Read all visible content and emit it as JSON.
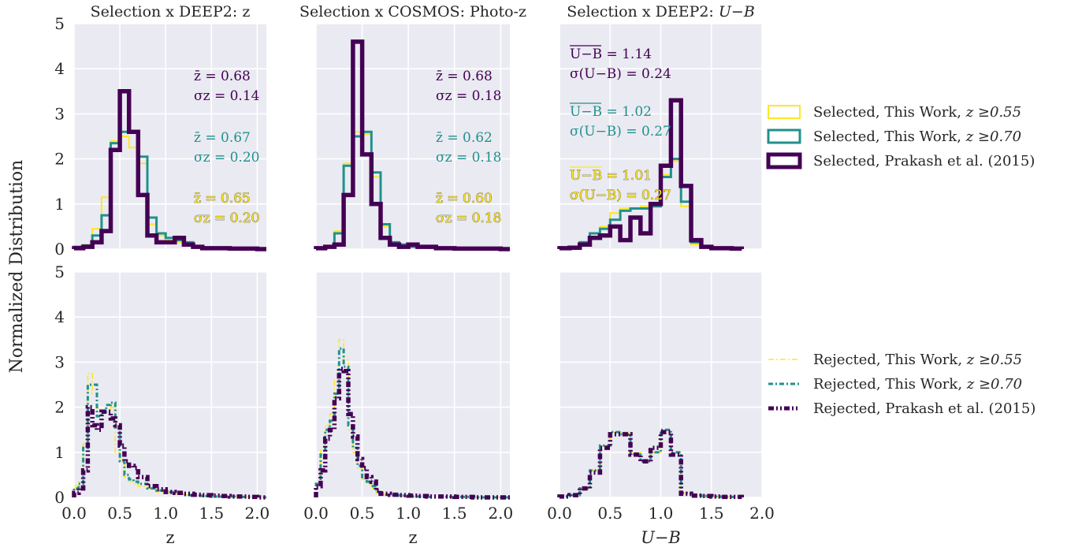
{
  "figure": {
    "ylabel": "Normalized Distribution"
  },
  "colors": {
    "background": "#eaeaf2",
    "grid": "#ffffff",
    "series_055": "#fde725",
    "series_070": "#21918c",
    "series_prakash": "#440154"
  },
  "legend_selected": [
    {
      "label": "Selected, This Work, ",
      "math": "z ≥0.55",
      "color": "#fde725",
      "width": 2
    },
    {
      "label": "Selected, This Work, ",
      "math": "z ≥0.70",
      "color": "#21918c",
      "width": 3
    },
    {
      "label": "Selected, Prakash et al. (2015)",
      "math": "",
      "color": "#440154",
      "width": 5
    }
  ],
  "legend_rejected": [
    {
      "label": "Rejected, This Work, ",
      "math": "z ≥0.55",
      "color": "#fde725",
      "width": 1.5
    },
    {
      "label": "Rejected, This Work, ",
      "math": "z ≥0.70",
      "color": "#21918c",
      "width": 3
    },
    {
      "label": "Rejected, Prakash et al. (2015)",
      "math": "",
      "color": "#440154",
      "width": 5
    }
  ],
  "chart_data": [
    {
      "type": "histogram",
      "title": "Selection x DEEP2: z",
      "xlabel": "",
      "ylabel": "",
      "xlim": [
        0.0,
        2.1
      ],
      "ylim": [
        0,
        5
      ],
      "xticks": [
        0.0,
        0.5,
        1.0,
        1.5,
        2.0
      ],
      "yticks": [
        0,
        1,
        2,
        3,
        4,
        5
      ],
      "grid": true,
      "bin_edges": [
        0.0,
        0.1,
        0.2,
        0.3,
        0.4,
        0.5,
        0.6,
        0.7,
        0.8,
        0.9,
        1.0,
        1.1,
        1.2,
        1.3,
        1.4,
        1.5,
        1.6,
        1.7,
        1.8,
        1.9,
        2.0,
        2.1
      ],
      "series": [
        {
          "values": [
            0.05,
            0.1,
            0.45,
            1.15,
            2.4,
            2.5,
            2.25,
            1.9,
            0.55,
            0.3,
            0.2,
            0.15,
            0.1,
            0.05,
            0.03,
            0.02,
            0.02,
            0.01,
            0.01,
            0.01,
            0.0
          ]
        },
        {
          "values": [
            0.05,
            0.08,
            0.3,
            0.75,
            2.35,
            2.6,
            2.6,
            2.05,
            0.7,
            0.35,
            0.25,
            0.2,
            0.15,
            0.05,
            0.03,
            0.02,
            0.02,
            0.01,
            0.01,
            0.01,
            0.0
          ]
        },
        {
          "values": [
            0.02,
            0.05,
            0.15,
            0.4,
            2.2,
            3.5,
            2.6,
            1.2,
            0.3,
            0.15,
            0.15,
            0.25,
            0.1,
            0.05,
            0.02,
            0.02,
            0.02,
            0.01,
            0.01,
            0.01,
            0.0
          ]
        }
      ],
      "annotations": [
        {
          "line1": "z̄ = 0.68",
          "line2": "σz = 0.14",
          "color": "#440154"
        },
        {
          "line1": "z̄ = 0.67",
          "line2": "σz = 0.20",
          "color": "#21918c"
        },
        {
          "line1": "z̄ = 0.65",
          "line2": "σz = 0.20",
          "color": "#fde725"
        }
      ]
    },
    {
      "type": "histogram",
      "title": "Selection x COSMOS: Photo-z",
      "xlabel": "",
      "ylabel": "",
      "xlim": [
        0.0,
        2.1
      ],
      "ylim": [
        0,
        5
      ],
      "xticks": [
        0.0,
        0.5,
        1.0,
        1.5,
        2.0
      ],
      "yticks": [
        0,
        1,
        2,
        3,
        4,
        5
      ],
      "grid": true,
      "bin_edges": [
        0.0,
        0.1,
        0.2,
        0.3,
        0.4,
        0.5,
        0.6,
        0.7,
        0.8,
        0.9,
        1.0,
        1.1,
        1.2,
        1.3,
        1.4,
        1.5,
        1.6,
        1.7,
        1.8,
        1.9,
        2.0,
        2.1
      ],
      "series": [
        {
          "values": [
            0.03,
            0.05,
            0.4,
            1.9,
            2.6,
            2.55,
            1.6,
            0.5,
            0.15,
            0.1,
            0.05,
            0.05,
            0.03,
            0.02,
            0.02,
            0.01,
            0.01,
            0.01,
            0.01,
            0.01,
            0.0
          ]
        },
        {
          "values": [
            0.03,
            0.05,
            0.35,
            1.85,
            2.5,
            2.6,
            1.7,
            0.55,
            0.15,
            0.1,
            0.05,
            0.05,
            0.03,
            0.02,
            0.02,
            0.01,
            0.01,
            0.01,
            0.01,
            0.01,
            0.0
          ]
        },
        {
          "values": [
            0.02,
            0.05,
            0.1,
            1.2,
            4.6,
            2.1,
            1.0,
            0.25,
            0.1,
            0.05,
            0.1,
            0.05,
            0.05,
            0.02,
            0.02,
            0.01,
            0.01,
            0.01,
            0.01,
            0.01,
            0.0
          ]
        }
      ],
      "annotations": [
        {
          "line1": "z̄ = 0.68",
          "line2": "σz = 0.18",
          "color": "#440154"
        },
        {
          "line1": "z̄ = 0.62",
          "line2": "σz = 0.18",
          "color": "#21918c"
        },
        {
          "line1": "z̄ = 0.60",
          "line2": "σz = 0.18",
          "color": "#fde725"
        }
      ]
    },
    {
      "type": "histogram",
      "title": "Selection x DEEP2: ",
      "title_math": "U−B",
      "xlabel": "",
      "ylabel": "",
      "xlim": [
        0.0,
        2.0
      ],
      "ylim": [
        0,
        5
      ],
      "xticks": [
        0.0,
        0.5,
        1.0,
        1.5,
        2.0
      ],
      "yticks": [
        0,
        1,
        2,
        3,
        4,
        5
      ],
      "grid": true,
      "bin_edges": [
        0.0,
        0.1,
        0.2,
        0.3,
        0.4,
        0.5,
        0.6,
        0.7,
        0.8,
        0.9,
        1.0,
        1.1,
        1.2,
        1.3,
        1.4,
        1.5,
        1.6,
        1.7,
        1.8
      ],
      "series": [
        {
          "values": [
            0.02,
            0.05,
            0.15,
            0.35,
            0.5,
            0.8,
            0.9,
            0.9,
            0.95,
            1.0,
            1.65,
            1.95,
            0.95,
            0.1,
            0.05,
            0.02,
            0.02,
            0.01
          ]
        },
        {
          "values": [
            0.02,
            0.05,
            0.15,
            0.35,
            0.45,
            0.65,
            0.85,
            0.9,
            0.9,
            0.95,
            1.6,
            2.0,
            1.05,
            0.15,
            0.05,
            0.02,
            0.02,
            0.01
          ]
        },
        {
          "values": [
            0.02,
            0.03,
            0.1,
            0.25,
            0.3,
            0.5,
            0.2,
            0.7,
            0.35,
            1.0,
            1.85,
            3.3,
            1.4,
            0.2,
            0.05,
            0.02,
            0.02,
            0.01
          ]
        }
      ],
      "annotations": [
        {
          "line1": "U−B = 1.14",
          "line2": "σ(U−B) = 0.24",
          "color": "#440154"
        },
        {
          "line1": "U−B = 1.02",
          "line2": "σ(U−B) = 0.27",
          "color": "#21918c"
        },
        {
          "line1": "U−B = 1.01",
          "line2": "σ(U−B) = 0.27",
          "color": "#fde725"
        }
      ]
    },
    {
      "type": "histogram",
      "title": "",
      "xlabel": "z",
      "ylabel": "",
      "xlim": [
        0.0,
        2.1
      ],
      "ylim": [
        0,
        5
      ],
      "xticks": [
        0.0,
        0.5,
        1.0,
        1.5,
        2.0
      ],
      "yticks": [
        0,
        1,
        2,
        3,
        4,
        5
      ],
      "grid": true,
      "bin_edges": [
        0.0,
        0.05,
        0.1,
        0.15,
        0.2,
        0.25,
        0.3,
        0.35,
        0.4,
        0.45,
        0.5,
        0.55,
        0.6,
        0.65,
        0.7,
        0.8,
        0.9,
        1.0,
        1.1,
        1.2,
        1.3,
        1.4,
        1.5,
        1.6,
        1.7,
        1.8,
        1.9,
        2.0,
        2.1
      ],
      "series": [
        {
          "values": [
            0.25,
            0.35,
            1.2,
            2.75,
            2.3,
            1.95,
            1.9,
            1.95,
            2.0,
            1.0,
            0.8,
            0.45,
            0.35,
            0.3,
            0.25,
            0.2,
            0.12,
            0.1,
            0.08,
            0.05,
            0.04,
            0.03,
            0.02,
            0.02,
            0.02,
            0.01,
            0.01,
            0.0
          ]
        },
        {
          "values": [
            0.2,
            0.3,
            1.1,
            2.5,
            2.5,
            1.8,
            1.9,
            2.05,
            2.1,
            1.55,
            0.8,
            0.5,
            0.4,
            0.35,
            0.3,
            0.2,
            0.15,
            0.12,
            0.08,
            0.05,
            0.04,
            0.03,
            0.02,
            0.02,
            0.02,
            0.01,
            0.01,
            0.0
          ]
        },
        {
          "values": [
            0.1,
            0.2,
            0.6,
            2.0,
            1.6,
            1.5,
            1.9,
            1.9,
            1.75,
            1.6,
            1.15,
            0.8,
            0.7,
            0.65,
            0.45,
            0.25,
            0.18,
            0.12,
            0.1,
            0.08,
            0.06,
            0.05,
            0.04,
            0.03,
            0.02,
            0.02,
            0.01,
            0.0
          ]
        }
      ],
      "annotations": []
    },
    {
      "type": "histogram",
      "title": "",
      "xlabel": "z",
      "ylabel": "",
      "xlim": [
        0.0,
        2.1
      ],
      "ylim": [
        0,
        5
      ],
      "xticks": [
        0.0,
        0.5,
        1.0,
        1.5,
        2.0
      ],
      "yticks": [
        0,
        1,
        2,
        3,
        4,
        5
      ],
      "grid": true,
      "bin_edges": [
        0.0,
        0.05,
        0.1,
        0.15,
        0.2,
        0.25,
        0.3,
        0.35,
        0.4,
        0.45,
        0.5,
        0.55,
        0.6,
        0.65,
        0.7,
        0.8,
        0.9,
        1.0,
        1.1,
        1.2,
        1.3,
        1.4,
        1.5,
        1.6,
        1.7,
        1.8,
        1.9,
        2.0,
        2.1
      ],
      "series": [
        {
          "values": [
            0.3,
            1.05,
            1.6,
            1.85,
            2.6,
            3.5,
            3.05,
            1.5,
            1.0,
            0.65,
            0.4,
            0.3,
            0.2,
            0.1,
            0.05,
            0.04,
            0.03,
            0.02,
            0.02,
            0.01,
            0.01,
            0.01,
            0.01,
            0.01,
            0.0,
            0.0,
            0.0,
            0.0
          ]
        },
        {
          "values": [
            0.3,
            0.95,
            1.5,
            1.7,
            2.3,
            3.3,
            2.9,
            1.6,
            1.1,
            0.7,
            0.45,
            0.35,
            0.25,
            0.12,
            0.06,
            0.05,
            0.04,
            0.02,
            0.02,
            0.01,
            0.01,
            0.01,
            0.01,
            0.01,
            0.0,
            0.0,
            0.0,
            0.0
          ]
        },
        {
          "values": [
            0.25,
            0.6,
            1.3,
            1.5,
            2.2,
            2.85,
            2.8,
            1.85,
            1.35,
            0.85,
            0.65,
            0.45,
            0.35,
            0.15,
            0.08,
            0.06,
            0.05,
            0.04,
            0.03,
            0.02,
            0.02,
            0.02,
            0.01,
            0.01,
            0.0,
            0.0,
            0.0,
            0.0
          ]
        }
      ],
      "annotations": []
    },
    {
      "type": "histogram",
      "title": "",
      "xlabel": "U−B",
      "ylabel": "",
      "xlim": [
        0.0,
        2.0
      ],
      "ylim": [
        0,
        5
      ],
      "xticks": [
        0.0,
        0.5,
        1.0,
        1.5,
        2.0
      ],
      "yticks": [
        0,
        1,
        2,
        3,
        4,
        5
      ],
      "grid": true,
      "bin_edges": [
        0.0,
        0.1,
        0.2,
        0.3,
        0.4,
        0.5,
        0.6,
        0.7,
        0.8,
        0.9,
        1.0,
        1.1,
        1.2,
        1.3,
        1.4,
        1.5,
        1.6,
        1.7,
        1.8
      ],
      "series": [
        {
          "values": [
            0.02,
            0.05,
            0.2,
            0.6,
            1.15,
            1.45,
            1.45,
            1.0,
            0.8,
            1.0,
            1.45,
            1.0,
            0.1,
            0.05,
            0.03,
            0.02,
            0.01,
            0.01
          ]
        },
        {
          "values": [
            0.02,
            0.05,
            0.2,
            0.6,
            1.15,
            1.45,
            1.4,
            0.95,
            0.8,
            1.0,
            1.5,
            1.0,
            0.1,
            0.05,
            0.03,
            0.02,
            0.01,
            0.01
          ]
        },
        {
          "values": [
            0.02,
            0.05,
            0.2,
            0.55,
            1.1,
            1.4,
            1.4,
            0.95,
            0.8,
            1.1,
            1.45,
            0.95,
            0.08,
            0.04,
            0.03,
            0.02,
            0.01,
            0.01
          ]
        }
      ],
      "annotations": []
    }
  ]
}
